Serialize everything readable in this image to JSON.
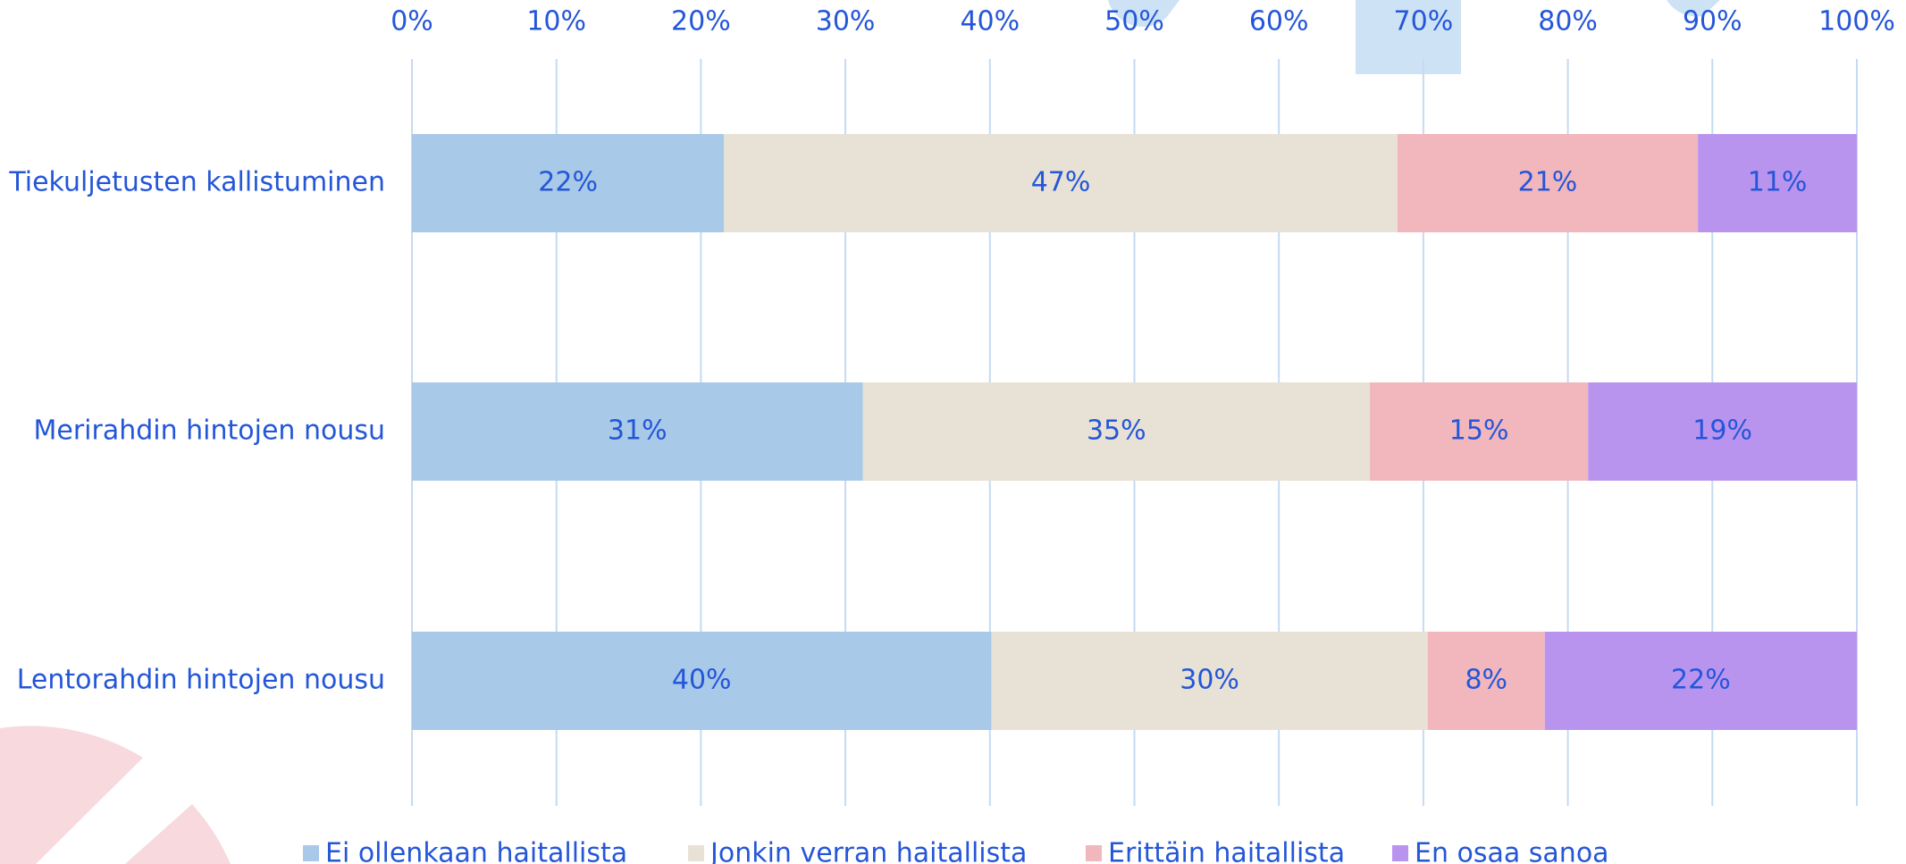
{
  "chart_data": {
    "type": "stacked-barh",
    "categories": [
      "Tiekuljetusten kallistuminen",
      "Merirahdin hintojen nousu",
      "Lentorahdin hintojen nousu"
    ],
    "series": [
      {
        "name": "Ei ollenkaan haitallista",
        "color": "#a8c9e8",
        "values": [
          21.6,
          31.2,
          40.1
        ],
        "value_labels": [
          "22%",
          "31%",
          "40%"
        ]
      },
      {
        "name": "Jonkin verran haitallista",
        "color": "#e8e2d6",
        "values": [
          46.6,
          35.1,
          30.2
        ],
        "value_labels": [
          "47%",
          "35%",
          "30%"
        ]
      },
      {
        "name": "Erittäin haitallista",
        "color": "#f2b6bd",
        "values": [
          20.8,
          15.1,
          8.1
        ],
        "value_labels": [
          "21%",
          "15%",
          "8%"
        ]
      },
      {
        "name": "En osaa sanoa",
        "color": "#b994ef",
        "values": [
          11.0,
          18.6,
          21.6
        ],
        "value_labels": [
          "11%",
          "19%",
          "22%"
        ]
      }
    ],
    "xlim": [
      0,
      100
    ],
    "xticks": [
      {
        "value": 0,
        "label": "0%"
      },
      {
        "value": 10,
        "label": "10%"
      },
      {
        "value": 20,
        "label": "20%"
      },
      {
        "value": 30,
        "label": "30%"
      },
      {
        "value": 40,
        "label": "40%"
      },
      {
        "value": 50,
        "label": "50%"
      },
      {
        "value": 60,
        "label": "60%"
      },
      {
        "value": 70,
        "label": "70%"
      },
      {
        "value": 80,
        "label": "80%"
      },
      {
        "value": 90,
        "label": "90%"
      },
      {
        "value": 100,
        "label": "100%"
      }
    ],
    "grid": true,
    "legend": "bottom"
  }
}
